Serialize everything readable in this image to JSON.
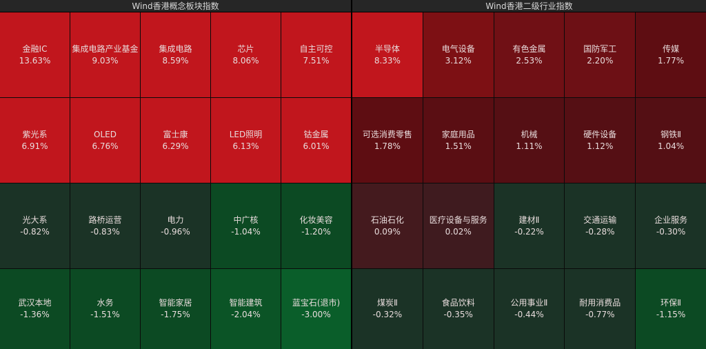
{
  "left": {
    "title": "Wind香港概念板块指数",
    "tiles": [
      {
        "name": "金融IC",
        "pct": "13.63%",
        "color": "#c1161d"
      },
      {
        "name": "集成电路产业基金",
        "pct": "9.03%",
        "color": "#c1161d"
      },
      {
        "name": "集成电路",
        "pct": "8.59%",
        "color": "#c1161d"
      },
      {
        "name": "芯片",
        "pct": "8.06%",
        "color": "#c1161d"
      },
      {
        "name": "自主可控",
        "pct": "7.51%",
        "color": "#c1161d"
      },
      {
        "name": "紫光系",
        "pct": "6.91%",
        "color": "#c1161d"
      },
      {
        "name": "OLED",
        "pct": "6.76%",
        "color": "#c1161d"
      },
      {
        "name": "富士康",
        "pct": "6.29%",
        "color": "#c1161d"
      },
      {
        "name": "LED照明",
        "pct": "6.13%",
        "color": "#c1161d"
      },
      {
        "name": "钴金属",
        "pct": "6.01%",
        "color": "#c1161d"
      },
      {
        "name": "光大系",
        "pct": "-0.82%",
        "color": "#1b3326"
      },
      {
        "name": "路桥运营",
        "pct": "-0.83%",
        "color": "#1b3326"
      },
      {
        "name": "电力",
        "pct": "-0.96%",
        "color": "#1b3326"
      },
      {
        "name": "中广核",
        "pct": "-1.04%",
        "color": "#0c4a23"
      },
      {
        "name": "化妆美容",
        "pct": "-1.20%",
        "color": "#0c4a23"
      },
      {
        "name": "武汉本地",
        "pct": "-1.36%",
        "color": "#0c4a23"
      },
      {
        "name": "水务",
        "pct": "-1.51%",
        "color": "#0c4a23"
      },
      {
        "name": "智能家居",
        "pct": "-1.75%",
        "color": "#0c4a23"
      },
      {
        "name": "智能建筑",
        "pct": "-2.04%",
        "color": "#0b5426"
      },
      {
        "name": "蓝宝石(退市)",
        "pct": "-3.00%",
        "color": "#0a5e2a"
      }
    ]
  },
  "right": {
    "title": "Wind香港二级行业指数",
    "tiles": [
      {
        "name": "半导体",
        "pct": "8.33%",
        "color": "#c1161d"
      },
      {
        "name": "电气设备",
        "pct": "3.12%",
        "color": "#7d1014"
      },
      {
        "name": "有色金属",
        "pct": "2.53%",
        "color": "#701015"
      },
      {
        "name": "国防军工",
        "pct": "2.20%",
        "color": "#6d1015"
      },
      {
        "name": "传媒",
        "pct": "1.77%",
        "color": "#5e0d12"
      },
      {
        "name": "可选消费零售",
        "pct": "1.78%",
        "color": "#5e0d12"
      },
      {
        "name": "家庭用品",
        "pct": "1.51%",
        "color": "#5a0e13"
      },
      {
        "name": "机械",
        "pct": "1.11%",
        "color": "#550f14"
      },
      {
        "name": "硬件设备",
        "pct": "1.12%",
        "color": "#550f14"
      },
      {
        "name": "钢铁Ⅱ",
        "pct": "1.04%",
        "color": "#540f14"
      },
      {
        "name": "石油石化",
        "pct": "0.09%",
        "color": "#441a1e"
      },
      {
        "name": "医疗设备与服务",
        "pct": "0.02%",
        "color": "#3f1b1f"
      },
      {
        "name": "建材Ⅱ",
        "pct": "-0.22%",
        "color": "#1b3326"
      },
      {
        "name": "交通运输",
        "pct": "-0.28%",
        "color": "#1b3326"
      },
      {
        "name": "企业服务",
        "pct": "-0.30%",
        "color": "#1b3326"
      },
      {
        "name": "煤炭Ⅱ",
        "pct": "-0.32%",
        "color": "#1b3326"
      },
      {
        "name": "食品饮料",
        "pct": "-0.35%",
        "color": "#1b3326"
      },
      {
        "name": "公用事业Ⅱ",
        "pct": "-0.44%",
        "color": "#1b3326"
      },
      {
        "name": "耐用消费品",
        "pct": "-0.77%",
        "color": "#1b3326"
      },
      {
        "name": "环保Ⅱ",
        "pct": "-1.15%",
        "color": "#0c4a23"
      }
    ]
  }
}
